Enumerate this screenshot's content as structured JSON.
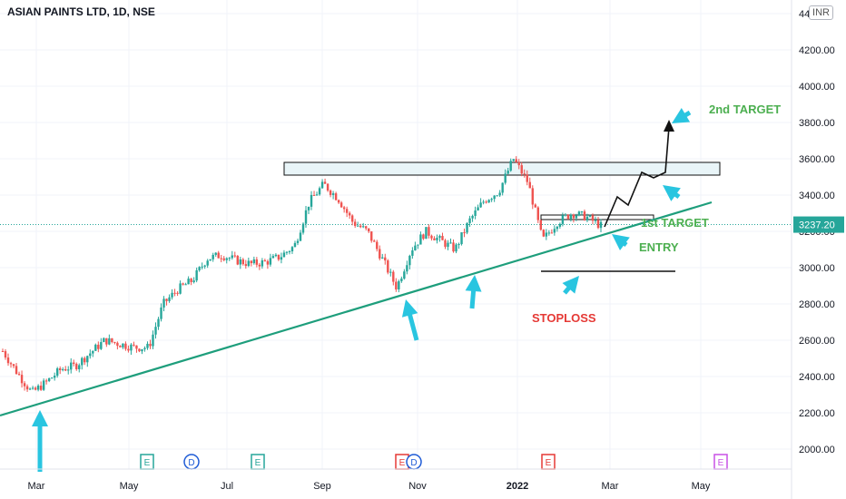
{
  "header": {
    "title": "ASIAN PAINTS LTD, 1D, NSE",
    "currency": "INR"
  },
  "colors": {
    "up": "#26a69a",
    "down": "#ef5350",
    "trendline": "#1e9e7c",
    "arrow": "#29c5e0",
    "label_green": "#4caf50",
    "label_red": "#e53935",
    "price_badge": "#26a69a"
  },
  "chart_data": {
    "type": "candlestick",
    "symbol": "ASIAN PAINTS LTD",
    "interval": "1D",
    "exchange": "NSE",
    "last_price": "3237.20",
    "ylim": [
      1880,
      4420
    ],
    "y_ticks": [
      "2000.00",
      "2200.00",
      "2400.00",
      "2600.00",
      "2800.00",
      "3000.00",
      "3200.00",
      "3400.00",
      "3600.00",
      "3800.00",
      "4000.00",
      "4200.00",
      "44"
    ],
    "x_ticks": [
      "Mar",
      "May",
      "Jul",
      "Sep",
      "Nov",
      "2022",
      "Mar",
      "May"
    ],
    "price_path": [
      2540,
      2420,
      2310,
      2370,
      2440,
      2460,
      2530,
      2600,
      2580,
      2560,
      2560,
      2800,
      2880,
      2930,
      3050,
      3070,
      3040,
      3020,
      3030,
      3060,
      3120,
      3360,
      3460,
      3380,
      3250,
      3200,
      3050,
      2890,
      3100,
      3200,
      3150,
      3100,
      3260,
      3370,
      3420,
      3600,
      3470,
      3150,
      3250,
      3300,
      3280,
      3230
    ],
    "annotations": {
      "labels": [
        "2nd TARGET",
        "1st TARGET",
        "ENTRY",
        "STOPLOSS"
      ],
      "event_markers": [
        "E",
        "D",
        "E",
        "E",
        "D",
        "E",
        "E"
      ],
      "resistance_zone": [
        3510,
        3580
      ],
      "target_box": [
        3265,
        3290
      ],
      "stoploss_level": 2980
    }
  }
}
